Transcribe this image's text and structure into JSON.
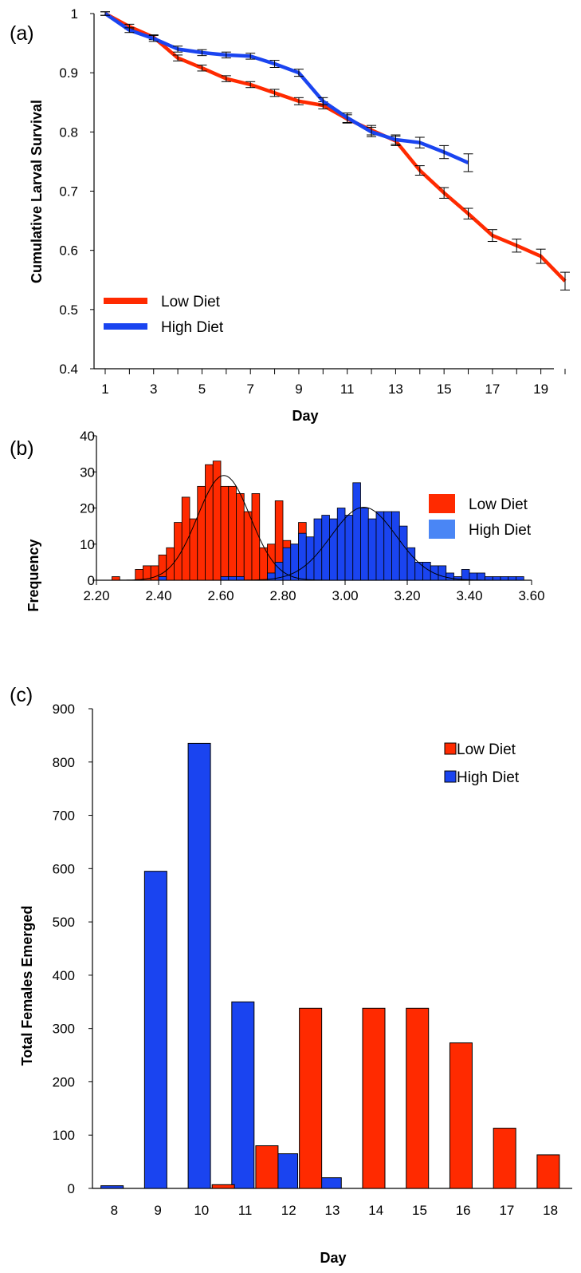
{
  "panels": {
    "a": {
      "label": "(a)"
    },
    "b": {
      "label": "(b)"
    },
    "c": {
      "label": "(c)"
    }
  },
  "colors": {
    "low": "#ff2a00",
    "high": "#1a44f0"
  },
  "chart_data": [
    {
      "type": "line",
      "panel": "(a)",
      "xlabel": "Day",
      "ylabel": "Cumulative Larval Survival",
      "xlim": [
        1,
        20
      ],
      "ylim": [
        0.4,
        1.0
      ],
      "xticks": [
        "1",
        "3",
        "5",
        "7",
        "9",
        "11",
        "13",
        "15",
        "17",
        "19"
      ],
      "yticks": [
        "0.4",
        "0.5",
        "0.6",
        "0.7",
        "0.8",
        "0.9",
        "1"
      ],
      "legend_position": "lower-left",
      "series": [
        {
          "name": "Low Diet",
          "color": "#ff2a00",
          "x": [
            1,
            2,
            3,
            4,
            5,
            6,
            7,
            8,
            9,
            10,
            11,
            12,
            13,
            14,
            15,
            16,
            17,
            18,
            19,
            20
          ],
          "y": [
            1.0,
            0.978,
            0.96,
            0.925,
            0.908,
            0.89,
            0.88,
            0.866,
            0.852,
            0.845,
            0.822,
            0.803,
            0.785,
            0.735,
            0.697,
            0.662,
            0.625,
            0.608,
            0.59,
            0.548
          ],
          "err": [
            0.003,
            0.004,
            0.004,
            0.005,
            0.005,
            0.005,
            0.005,
            0.006,
            0.006,
            0.006,
            0.007,
            0.008,
            0.008,
            0.008,
            0.009,
            0.009,
            0.01,
            0.011,
            0.012,
            0.015
          ]
        },
        {
          "name": "High Diet",
          "color": "#1a44f0",
          "x": [
            1,
            2,
            3,
            4,
            5,
            6,
            7,
            8,
            9,
            10,
            11,
            12,
            13,
            14,
            15,
            16
          ],
          "y": [
            1.0,
            0.972,
            0.958,
            0.94,
            0.934,
            0.93,
            0.928,
            0.915,
            0.9,
            0.852,
            0.824,
            0.8,
            0.787,
            0.782,
            0.766,
            0.748
          ],
          "err": [
            0.003,
            0.004,
            0.005,
            0.005,
            0.005,
            0.005,
            0.005,
            0.006,
            0.006,
            0.006,
            0.008,
            0.008,
            0.008,
            0.009,
            0.011,
            0.015
          ]
        }
      ]
    },
    {
      "type": "bar",
      "subtype": "histogram",
      "panel": "(b)",
      "xlabel": "",
      "ylabel": "Frequency",
      "xlim": [
        2.2,
        3.6
      ],
      "ylim": [
        0,
        40
      ],
      "bin_width": 0.025,
      "xticks": [
        "2.20",
        "2.40",
        "2.60",
        "2.80",
        "3.00",
        "3.20",
        "3.40",
        "3.60"
      ],
      "yticks": [
        "0",
        "10",
        "20",
        "30",
        "40"
      ],
      "legend_position": "top-right",
      "series": [
        {
          "name": "Low Diet",
          "color": "#ff2a00",
          "bin_starts": [
            2.225,
            2.25,
            2.275,
            2.3,
            2.325,
            2.35,
            2.375,
            2.4,
            2.425,
            2.45,
            2.475,
            2.5,
            2.525,
            2.55,
            2.575,
            2.6,
            2.625,
            2.65,
            2.675,
            2.7,
            2.725,
            2.75,
            2.775,
            2.8,
            2.825,
            2.85,
            2.875,
            2.9,
            2.925,
            2.95
          ],
          "counts": [
            0,
            1,
            0,
            0,
            3,
            4,
            4,
            7,
            9,
            16,
            23,
            17,
            26,
            32,
            33,
            26,
            26,
            24,
            19,
            24,
            9,
            10,
            22,
            11,
            10,
            16,
            2,
            1,
            0,
            0
          ],
          "fit": {
            "mean": 2.61,
            "peak": 29,
            "sd": 0.085
          }
        },
        {
          "name": "High Diet",
          "color": "#1a44f0",
          "bin_starts": [
            2.4,
            2.425,
            2.45,
            2.475,
            2.5,
            2.525,
            2.55,
            2.575,
            2.6,
            2.625,
            2.65,
            2.675,
            2.7,
            2.725,
            2.75,
            2.775,
            2.8,
            2.825,
            2.85,
            2.875,
            2.9,
            2.925,
            2.95,
            2.975,
            3.0,
            3.025,
            3.05,
            3.075,
            3.1,
            3.125,
            3.15,
            3.175,
            3.2,
            3.225,
            3.25,
            3.275,
            3.3,
            3.325,
            3.35,
            3.375,
            3.4,
            3.425,
            3.45,
            3.475,
            3.5,
            3.525,
            3.55,
            3.575
          ],
          "counts": [
            1,
            0,
            0,
            0,
            0,
            0,
            0,
            0,
            1,
            1,
            1,
            0,
            0,
            0,
            2,
            5,
            9,
            10,
            13,
            12,
            17,
            18,
            17,
            20,
            18,
            27,
            20,
            17,
            19,
            19,
            19,
            15,
            9,
            5,
            5,
            4,
            4,
            2,
            1,
            3,
            2,
            2,
            1,
            1,
            1,
            1,
            1,
            0
          ],
          "fit": {
            "mean": 3.06,
            "peak": 20.2,
            "sd": 0.105
          }
        }
      ]
    },
    {
      "type": "bar",
      "panel": "(c)",
      "xlabel": "Day",
      "ylabel": "Total Females Emerged",
      "categories": [
        "8",
        "9",
        "10",
        "11",
        "12",
        "13",
        "14",
        "15",
        "16",
        "17",
        "18"
      ],
      "ylim": [
        0,
        900
      ],
      "yticks": [
        "0",
        "100",
        "200",
        "300",
        "400",
        "500",
        "600",
        "700",
        "800",
        "900"
      ],
      "legend_position": "right",
      "series": [
        {
          "name": "Low Diet",
          "color": "#ff2a00",
          "values": [
            0,
            0,
            0,
            7,
            80,
            338,
            338,
            338,
            273,
            113,
            63
          ]
        },
        {
          "name": "High Diet",
          "color": "#1a44f0",
          "values": [
            5,
            595,
            835,
            350,
            65,
            20,
            0,
            0,
            0,
            0,
            0
          ]
        }
      ]
    }
  ]
}
